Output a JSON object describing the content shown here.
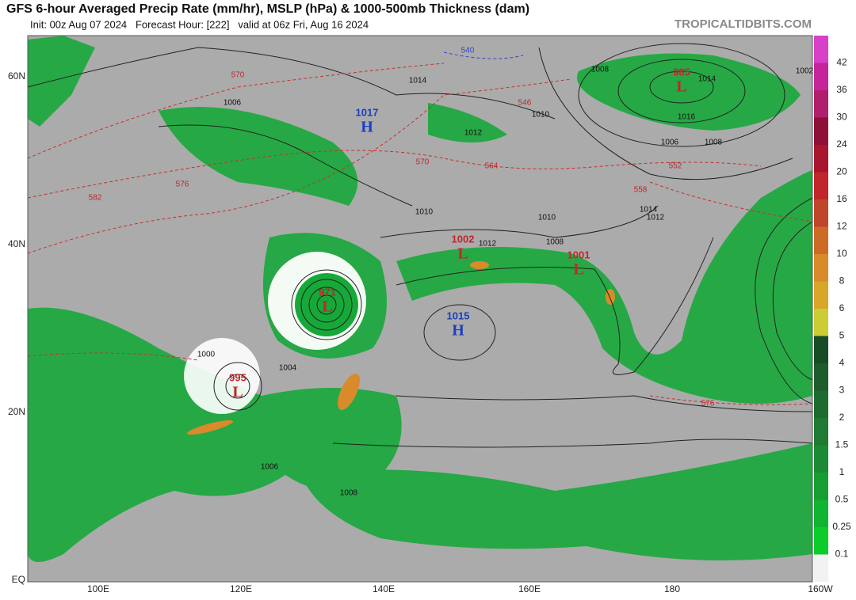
{
  "header": {
    "title": "GFS 6-hour Averaged Precip Rate (mm/hr), MSLP (hPa) & 1000-500mb Thickness (dam)",
    "subtitle": "Init: 00z Aug 07 2024   Forecast Hour: [222]   valid at 06z Fri, Aug 16 2024",
    "source": "TROPICALTIDBITS.COM"
  },
  "map": {
    "lat_labels": [
      "60N",
      "40N",
      "20N",
      "EQ"
    ],
    "lon_labels": [
      "100E",
      "120E",
      "140E",
      "160E",
      "180",
      "160W"
    ],
    "pressure_centers": [
      {
        "kind": "H",
        "value": "1017"
      },
      {
        "kind": "L",
        "value": "985"
      },
      {
        "kind": "L",
        "value": "1002"
      },
      {
        "kind": "L",
        "value": "1001"
      },
      {
        "kind": "L",
        "value": "971"
      },
      {
        "kind": "L",
        "value": "995"
      },
      {
        "kind": "H",
        "value": "1015"
      }
    ],
    "isobar_labels": [
      "1014",
      "1008",
      "1002",
      "1006",
      "1010",
      "1012",
      "1016",
      "1014",
      "1006",
      "1008",
      "1010",
      "1012",
      "1014",
      "1012",
      "1010",
      "1008",
      "1000",
      "1004",
      "1006",
      "1008"
    ],
    "thickness_labels": [
      "540",
      "552",
      "570",
      "546",
      "564",
      "558",
      "576",
      "582",
      "570",
      "576"
    ]
  },
  "colorbar": {
    "labels": [
      "0.1",
      "0.25",
      "0.5",
      "1",
      "1.5",
      "2",
      "3",
      "4",
      "5",
      "6",
      "8",
      "10",
      "12",
      "16",
      "20",
      "24",
      "30",
      "36",
      "42"
    ],
    "colors": [
      "#f2f2f2",
      "#0ccc2b",
      "#0fb530",
      "#179e33",
      "#1b8a33",
      "#1f7a33",
      "#1e6b30",
      "#1d5c2c",
      "#164d26",
      "#cccc33",
      "#d8a629",
      "#d98a2a",
      "#cc6b26",
      "#c0452a",
      "#c0262c",
      "#a8152c",
      "#8e0f37",
      "#b01f6c",
      "#c6249a",
      "#d940c8"
    ]
  }
}
